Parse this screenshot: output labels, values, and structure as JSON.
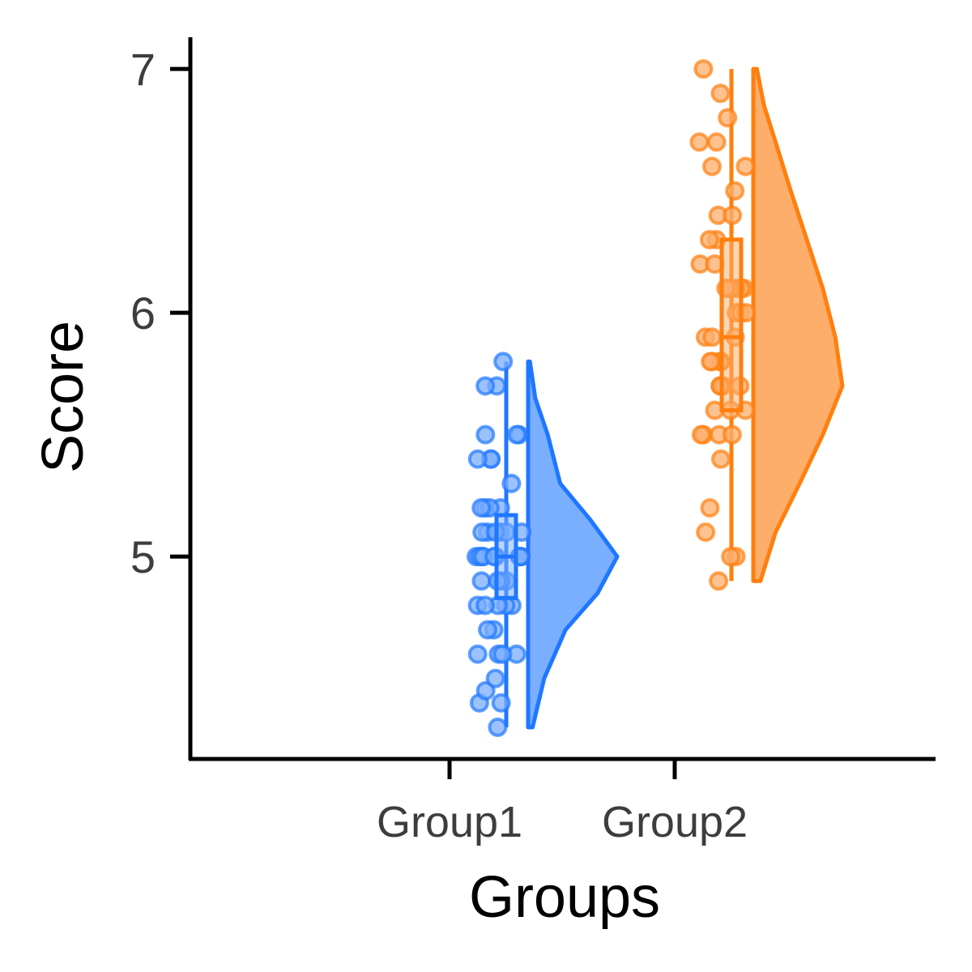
{
  "chart_data": {
    "type": "raincloud",
    "xlabel": "Groups",
    "ylabel": "Score",
    "categories": [
      "Group1",
      "Group2"
    ],
    "ylim": [
      4.17,
      7.13
    ],
    "yticks": [
      5,
      6,
      7
    ],
    "grid": false,
    "legend": "none",
    "series": [
      {
        "category": "Group1",
        "color": "#1f77ff",
        "fill": "#7aaeff",
        "stats": {
          "min": 4.3,
          "q1": 4.83,
          "median": 5.0,
          "q3": 5.17,
          "max": 5.8
        },
        "points": [
          4.3,
          4.4,
          4.4,
          4.45,
          4.5,
          4.6,
          4.6,
          4.6,
          4.6,
          4.7,
          4.7,
          4.8,
          4.8,
          4.8,
          4.8,
          4.8,
          4.9,
          4.9,
          4.9,
          4.9,
          5.0,
          5.0,
          5.0,
          5.0,
          5.0,
          5.0,
          5.0,
          5.0,
          5.0,
          5.1,
          5.1,
          5.1,
          5.1,
          5.1,
          5.1,
          5.2,
          5.2,
          5.2,
          5.2,
          5.3,
          5.4,
          5.4,
          5.4,
          5.5,
          5.5,
          5.5,
          5.7,
          5.7,
          5.8
        ],
        "density": [
          [
            4.3,
            0.05
          ],
          [
            4.5,
            0.18
          ],
          [
            4.7,
            0.42
          ],
          [
            4.85,
            0.78
          ],
          [
            5.0,
            1.0
          ],
          [
            5.15,
            0.7
          ],
          [
            5.3,
            0.36
          ],
          [
            5.5,
            0.22
          ],
          [
            5.65,
            0.08
          ],
          [
            5.8,
            0.02
          ]
        ]
      },
      {
        "category": "Group2",
        "color": "#ff7f0e",
        "fill": "#fdae6b",
        "stats": {
          "min": 4.9,
          "q1": 5.6,
          "median": 5.9,
          "q3": 6.3,
          "max": 7.0
        },
        "points": [
          4.9,
          5.0,
          5.0,
          5.1,
          5.2,
          5.4,
          5.5,
          5.5,
          5.5,
          5.5,
          5.6,
          5.6,
          5.6,
          5.7,
          5.7,
          5.7,
          5.7,
          5.8,
          5.8,
          5.8,
          5.8,
          5.9,
          5.9,
          5.9,
          6.0,
          6.0,
          6.0,
          6.1,
          6.1,
          6.1,
          6.1,
          6.1,
          6.2,
          6.2,
          6.3,
          6.3,
          6.4,
          6.4,
          6.5,
          6.6,
          6.6,
          6.7,
          6.7,
          6.8,
          6.9,
          7.0
        ],
        "density": [
          [
            4.9,
            0.08
          ],
          [
            5.1,
            0.25
          ],
          [
            5.3,
            0.52
          ],
          [
            5.5,
            0.78
          ],
          [
            5.7,
            1.0
          ],
          [
            5.9,
            0.92
          ],
          [
            6.1,
            0.78
          ],
          [
            6.3,
            0.6
          ],
          [
            6.5,
            0.42
          ],
          [
            6.7,
            0.25
          ],
          [
            6.85,
            0.12
          ],
          [
            7.0,
            0.04
          ]
        ]
      }
    ]
  }
}
